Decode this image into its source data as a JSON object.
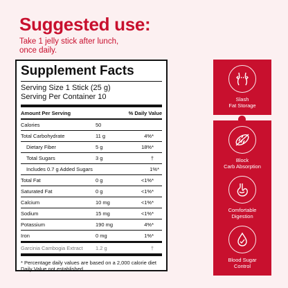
{
  "header": {
    "title": "Suggested use:",
    "instructions": "Take 1 jelly stick after lunch, once daily."
  },
  "facts": {
    "title": "Supplement Facts",
    "serving_size": "Serving Size 1 Stick (25 g)",
    "servings_per_container": "Serving Per Container 10",
    "col_amount": "Amount Per Serving",
    "col_dv": "% Daily Value",
    "rows": [
      {
        "name": "Calories",
        "amount": "50",
        "dv": ""
      },
      {
        "name": "Total Carbohydrate",
        "amount": "11 g",
        "dv": "4%*"
      },
      {
        "name": "Dietary Fiber",
        "amount": "5 g",
        "dv": "18%*"
      },
      {
        "name": "Total Sugars",
        "amount": "3 g",
        "dv": "†"
      },
      {
        "name": "Includes 0.7 g Added Sugars",
        "amount": "",
        "dv": "1%*"
      },
      {
        "name": "Total Fat",
        "amount": "0 g",
        "dv": "<1%*"
      },
      {
        "name": "Saturated Fat",
        "amount": "0 g",
        "dv": "<1%*"
      },
      {
        "name": "Calcium",
        "amount": "10 mg",
        "dv": "<1%*"
      },
      {
        "name": "Sodium",
        "amount": "15 mg",
        "dv": "<1%*"
      },
      {
        "name": "Potassium",
        "amount": "190 mg",
        "dv": "4%*"
      },
      {
        "name": "Iron",
        "amount": "0 mg",
        "dv": "1%*"
      },
      {
        "name": "Garcinia Cambogia Extract",
        "amount": "1.2 g",
        "dv": "†"
      }
    ],
    "footnote": "* Percentage daily values are based on a 2,000 calorie diet Daily Value not established."
  },
  "benefits": [
    {
      "icon": "waist-icon",
      "line1": "Slash",
      "line2": "Fat Storage"
    },
    {
      "icon": "bread-icon",
      "line1": "Block",
      "line2": "Carb Absorption"
    },
    {
      "icon": "stomach-icon",
      "line1": "Comfortable",
      "line2": "Digestion"
    },
    {
      "icon": "blood-drop-icon",
      "line1": "Blood Sugar",
      "line2": "Control"
    }
  ],
  "colors": {
    "accent": "#c8102e",
    "background": "#fcf0f1"
  }
}
